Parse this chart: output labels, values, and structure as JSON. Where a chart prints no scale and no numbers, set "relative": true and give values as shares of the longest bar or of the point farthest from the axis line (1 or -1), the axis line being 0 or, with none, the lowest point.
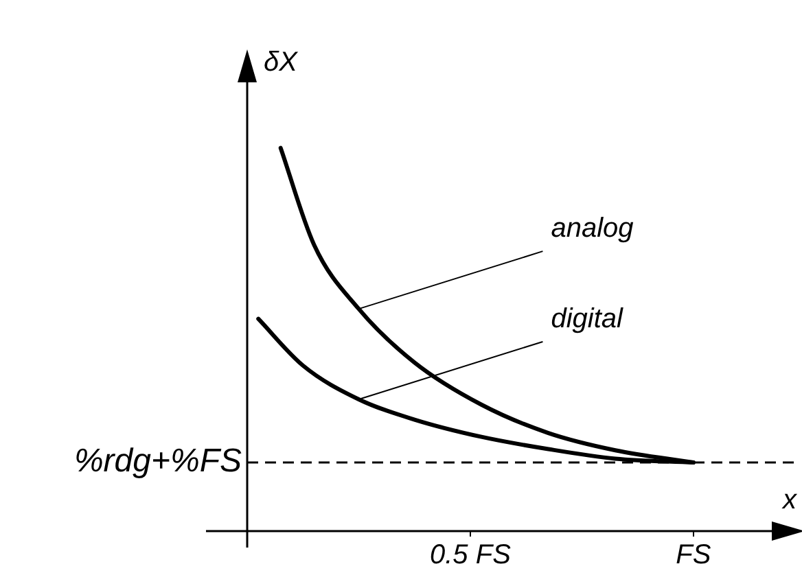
{
  "chart_data": {
    "type": "line",
    "relative": true,
    "ylabel": "δX",
    "xlabel": "x",
    "categories": [
      null,
      null,
      null,
      null,
      null,
      null,
      null,
      null,
      null,
      null,
      null,
      null,
      null,
      null,
      null,
      null,
      null,
      null,
      null,
      null,
      "0.5 FS",
      null,
      null,
      null,
      null,
      null,
      null,
      null,
      null,
      null,
      null,
      null,
      null,
      null,
      null,
      null,
      null,
      null,
      null,
      null,
      "FS",
      null,
      null,
      null,
      null,
      null,
      null,
      null,
      null,
      null
    ],
    "series": [
      {
        "color": "#000000",
        "values": [
          null,
          null,
          null,
          1,
          null,
          null,
          0.747,
          null,
          null,
          null,
          0.58,
          null,
          null,
          null,
          null,
          0.44,
          null,
          null,
          null,
          null,
          null,
          0.33,
          null,
          null,
          null,
          null,
          null,
          0.256,
          null,
          null,
          null,
          null,
          null,
          0.211,
          null,
          null,
          null,
          null,
          null,
          null,
          0.179,
          null,
          null,
          null,
          null,
          null,
          null,
          null,
          null,
          null
        ]
      },
      {
        "color": "#000000",
        "values": [
          null,
          0.554,
          null,
          null,
          null,
          0.432,
          null,
          null,
          null,
          null,
          0.344,
          null,
          null,
          null,
          null,
          0.291,
          null,
          null,
          null,
          null,
          null,
          0.246,
          null,
          null,
          null,
          null,
          null,
          0.214,
          null,
          null,
          null,
          null,
          null,
          0.189,
          null,
          null,
          null,
          null,
          null,
          null,
          0.179,
          null,
          null,
          null,
          null,
          null,
          null,
          null,
          null,
          null
        ]
      }
    ],
    "ref_lines": [
      {
        "axis": "y",
        "value": 0.179,
        "label": "%rdg+%FS",
        "line_style": "dashed",
        "color": "#000000"
      }
    ],
    "annotations": [
      "analog",
      "digital"
    ],
    "grid": false,
    "legend": false,
    "marker": "none",
    "line_style": "solid"
  }
}
